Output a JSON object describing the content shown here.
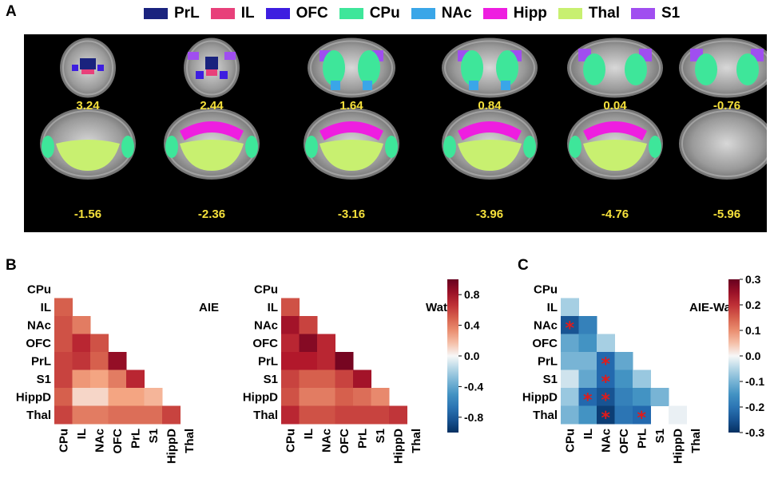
{
  "panel_labels": {
    "a": "A",
    "b": "B",
    "c": "C"
  },
  "legend": [
    {
      "label": "PrL",
      "color": "#1a237e"
    },
    {
      "label": "IL",
      "color": "#e8407a"
    },
    {
      "label": "OFC",
      "color": "#3d1ee0"
    },
    {
      "label": "CPu",
      "color": "#3ee69a"
    },
    {
      "label": "NAc",
      "color": "#3aa6e8"
    },
    {
      "label": "Hipp",
      "color": "#ee1ee0"
    },
    {
      "label": "Thal",
      "color": "#c8f070"
    },
    {
      "label": "S1",
      "color": "#a04ef0"
    }
  ],
  "brain_slices": {
    "row1": [
      "3.24",
      "2.44",
      "1.64",
      "0.84",
      "0.04",
      "-0.76"
    ],
    "row2": [
      "-1.56",
      "-2.36",
      "-3.16",
      "-3.96",
      "-4.76",
      "-5.96"
    ]
  },
  "chart_data": [
    {
      "type": "heatmap",
      "title": "AIE",
      "rows": [
        "CPu",
        "IL",
        "NAc",
        "OFC",
        "PrL",
        "S1",
        "HippD",
        "Thal"
      ],
      "cols": [
        "CPu",
        "IL",
        "NAc",
        "OFC",
        "PrL",
        "S1",
        "HippD",
        "Thal"
      ],
      "values": [
        [
          null,
          null,
          null,
          null,
          null,
          null,
          null,
          null
        ],
        [
          0.5,
          null,
          null,
          null,
          null,
          null,
          null,
          null
        ],
        [
          0.55,
          0.4,
          null,
          null,
          null,
          null,
          null,
          null
        ],
        [
          0.55,
          0.7,
          0.55,
          null,
          null,
          null,
          null,
          null
        ],
        [
          0.6,
          0.65,
          0.5,
          0.85,
          null,
          null,
          null,
          null
        ],
        [
          0.6,
          0.3,
          0.25,
          0.4,
          0.7,
          null,
          null,
          null
        ],
        [
          0.5,
          0.1,
          0.1,
          0.25,
          0.25,
          0.2,
          null,
          null
        ],
        [
          0.6,
          0.4,
          0.4,
          0.45,
          0.45,
          0.45,
          0.6,
          null
        ]
      ],
      "colorbar": {
        "min": -1,
        "max": 1,
        "ticks": [
          0.8,
          0.4,
          0.0,
          -0.4,
          -0.8
        ]
      }
    },
    {
      "type": "heatmap",
      "title": "Wat",
      "rows": [
        "CPu",
        "IL",
        "NAc",
        "OFC",
        "PrL",
        "S1",
        "HippD",
        "Thal"
      ],
      "cols": [
        "CPu",
        "IL",
        "NAc",
        "OFC",
        "PrL",
        "S1",
        "HippD",
        "Thal"
      ],
      "values": [
        [
          null,
          null,
          null,
          null,
          null,
          null,
          null,
          null
        ],
        [
          0.55,
          null,
          null,
          null,
          null,
          null,
          null,
          null
        ],
        [
          0.8,
          0.6,
          null,
          null,
          null,
          null,
          null,
          null
        ],
        [
          0.7,
          0.9,
          0.7,
          null,
          null,
          null,
          null,
          null
        ],
        [
          0.75,
          0.75,
          0.7,
          0.95,
          null,
          null,
          null,
          null
        ],
        [
          0.6,
          0.5,
          0.5,
          0.6,
          0.8,
          null,
          null,
          null
        ],
        [
          0.55,
          0.4,
          0.4,
          0.5,
          0.45,
          0.35,
          null,
          null
        ],
        [
          0.7,
          0.55,
          0.55,
          0.6,
          0.6,
          0.6,
          0.65,
          null
        ]
      ]
    },
    {
      "type": "heatmap",
      "title": "AIE-Wat",
      "rows": [
        "CPu",
        "IL",
        "NAc",
        "OFC",
        "PrL",
        "S1",
        "HippD",
        "Thal"
      ],
      "cols": [
        "CPu",
        "IL",
        "NAc",
        "OFC",
        "PrL",
        "S1",
        "HippD",
        "Thal"
      ],
      "values": [
        [
          null,
          null,
          null,
          null,
          null,
          null,
          null,
          null
        ],
        [
          -0.06,
          null,
          null,
          null,
          null,
          null,
          null,
          null
        ],
        [
          -0.25,
          -0.18,
          null,
          null,
          null,
          null,
          null,
          null
        ],
        [
          -0.12,
          -0.15,
          -0.06,
          null,
          null,
          null,
          null,
          null
        ],
        [
          -0.1,
          -0.1,
          -0.22,
          -0.12,
          null,
          null,
          null,
          null
        ],
        [
          -0.03,
          -0.12,
          -0.22,
          -0.15,
          -0.07,
          null,
          null,
          null
        ],
        [
          -0.07,
          -0.22,
          -0.25,
          -0.18,
          -0.15,
          -0.1,
          null,
          null
        ],
        [
          -0.1,
          -0.15,
          -0.28,
          -0.2,
          -0.22,
          null,
          -0.01,
          null
        ]
      ],
      "significant": [
        [
          2,
          0
        ],
        [
          4,
          2
        ],
        [
          5,
          2
        ],
        [
          6,
          1
        ],
        [
          6,
          2
        ],
        [
          7,
          2
        ],
        [
          7,
          4
        ]
      ],
      "colorbar": {
        "min": -0.3,
        "max": 0.3,
        "ticks": [
          0.3,
          0.2,
          0.1,
          0.0,
          -0.1,
          -0.2,
          -0.3
        ]
      }
    }
  ]
}
